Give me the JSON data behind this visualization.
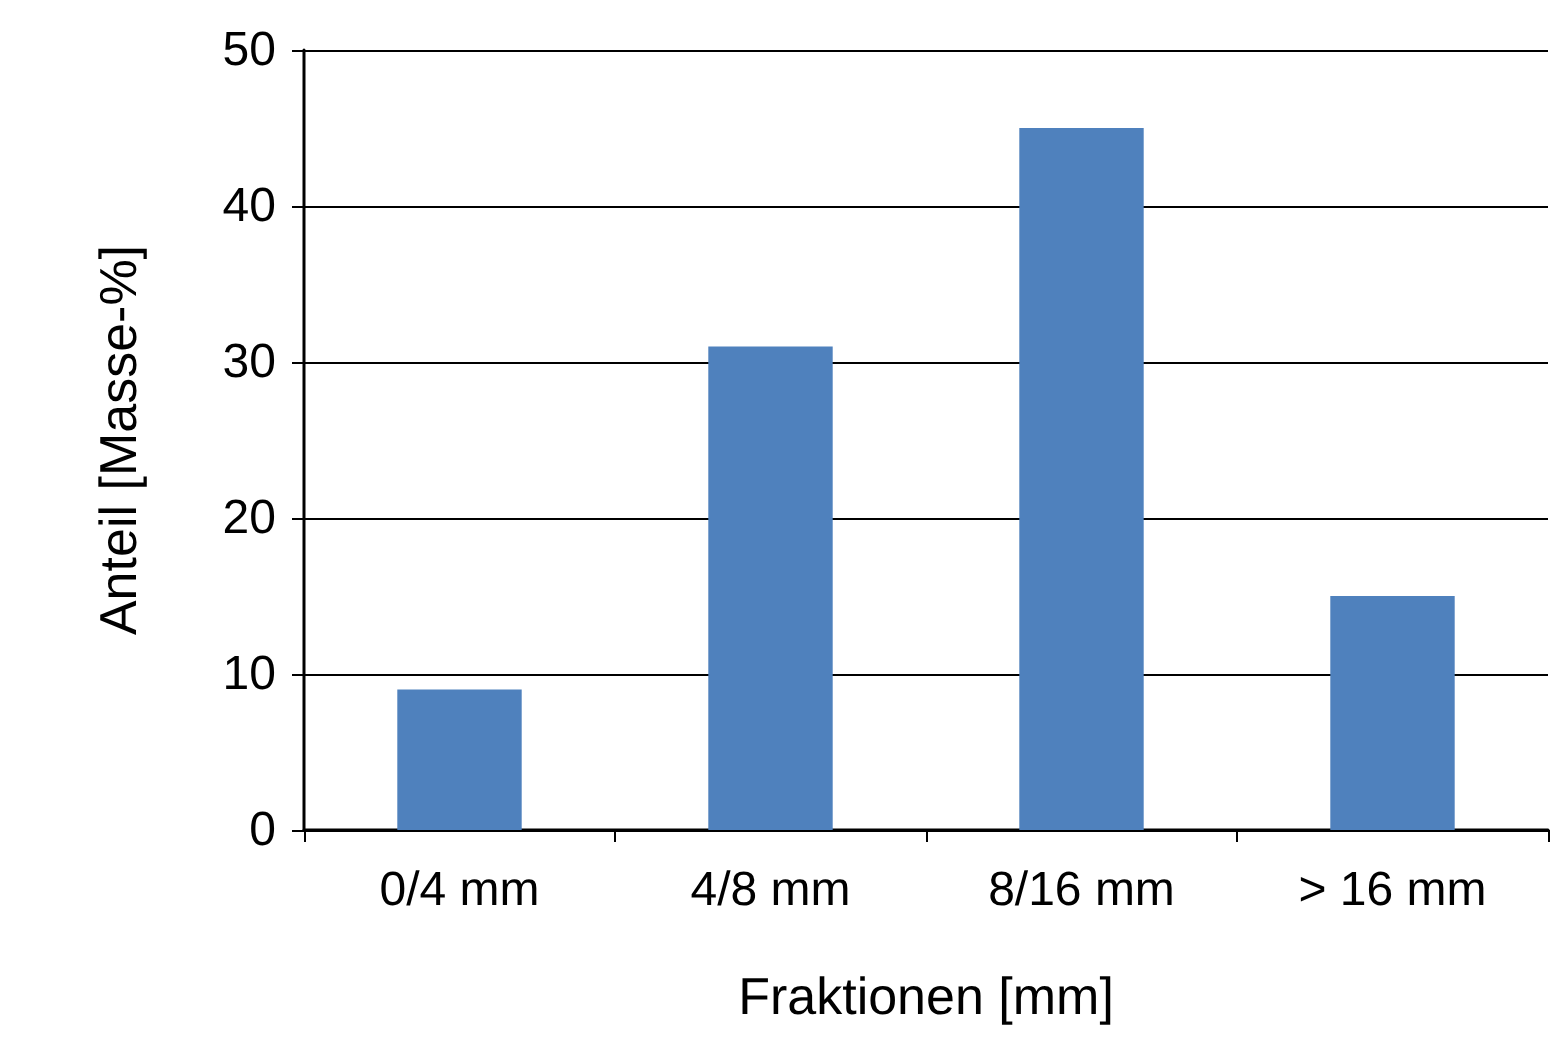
{
  "chart_data": {
    "type": "bar",
    "xlabel": "Fraktionen [mm]",
    "ylabel": "Anteil [Masse-%]",
    "categories": [
      "0/4 mm",
      "4/8 mm",
      "8/16 mm",
      "> 16 mm"
    ],
    "values": [
      9,
      31,
      45,
      15
    ],
    "color": "#4f81bd",
    "ylim": [
      0,
      50
    ],
    "yticks": [
      0,
      10,
      20,
      30,
      40,
      50
    ],
    "grid": "y"
  }
}
